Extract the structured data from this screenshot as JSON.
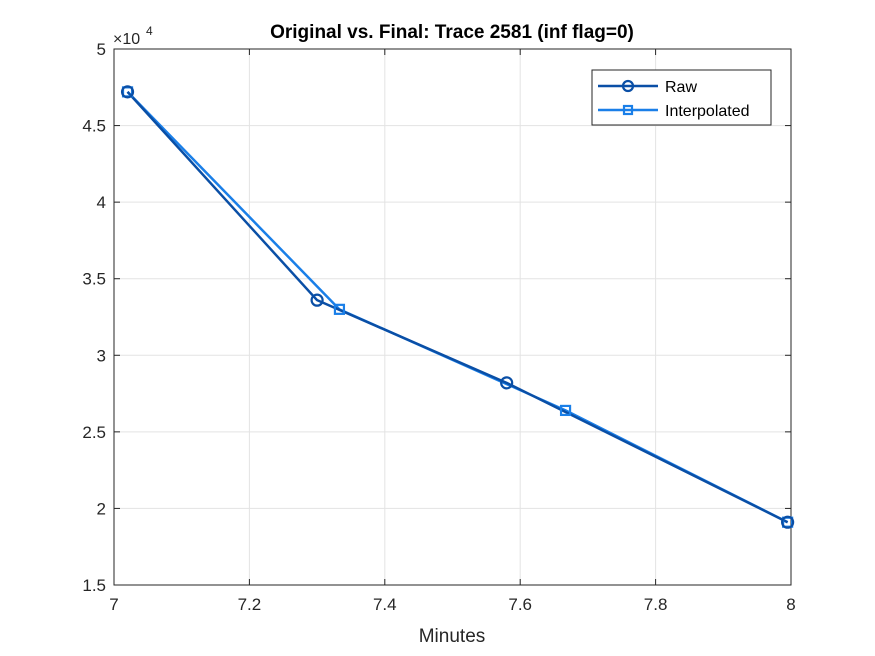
{
  "chart_data": {
    "type": "line",
    "title": "Original vs. Final: Trace 2581 (inf flag=0)",
    "xlabel": "Minutes",
    "ylabel": "",
    "xlim": [
      7,
      8
    ],
    "ylim": [
      15000,
      50000
    ],
    "y_exponent_label": {
      "base": "×10",
      "power": "4"
    },
    "xticks": [
      7,
      7.2,
      7.4,
      7.6,
      7.8,
      8
    ],
    "xtick_labels": [
      "7",
      "7.2",
      "7.4",
      "7.6",
      "7.8",
      "8"
    ],
    "yticks": [
      15000,
      20000,
      25000,
      30000,
      35000,
      40000,
      45000,
      50000
    ],
    "ytick_labels": [
      "1.5",
      "2",
      "2.5",
      "3",
      "3.5",
      "4",
      "4.5",
      "5"
    ],
    "grid": true,
    "legend_position": "top-right",
    "series": [
      {
        "name": "Raw",
        "marker": "circle",
        "color": "#0a4fa6",
        "x": [
          7.02,
          7.3,
          7.58,
          7.995
        ],
        "y": [
          47200,
          33600,
          28200,
          19100
        ]
      },
      {
        "name": "Interpolated",
        "marker": "square",
        "color": "#1a7fe8",
        "x": [
          7.02,
          7.333,
          7.667,
          7.995
        ],
        "y": [
          47200,
          33000,
          26400,
          19100
        ]
      }
    ]
  }
}
